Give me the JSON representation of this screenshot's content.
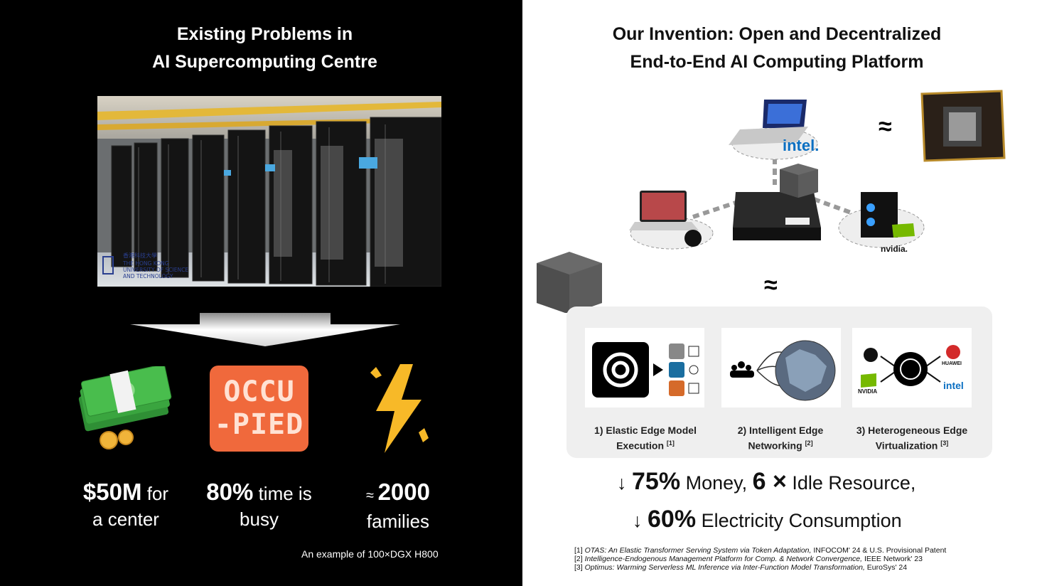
{
  "left": {
    "title_line1": "Existing Problems in",
    "title_line2": "AI Supercomputing Centre",
    "photo_logo": {
      "cjk": "香港科技大學",
      "line1": "THE HONG KONG",
      "line2": "UNIVERSITY OF SCIENCE",
      "line3": "AND TECHNOLOGY"
    },
    "occupied_line1": "OCCU",
    "occupied_line2": "-PIED",
    "stats": [
      {
        "value": "$50M",
        "text1": " for",
        "text2": "a center"
      },
      {
        "value": "80%",
        "text1": " time is",
        "text2": "busy"
      },
      {
        "prefix": "≈ ",
        "value": "2000",
        "text2": "families"
      }
    ],
    "footnote": "An example of 100×DGX H800"
  },
  "right": {
    "title_line1": "Our Invention: Open and Decentralized",
    "title_line2": "End-to-End AI Computing Platform",
    "approx_symbol": "≈",
    "brands": {
      "intel": "intel.",
      "nvidia": "nvidia.",
      "huawei": "HUAWEI",
      "intel_small": "intel",
      "nvidia_small": "NVIDIA"
    },
    "features": [
      {
        "label_line1": "1) Elastic Edge Model",
        "label_line2": "Execution",
        "ref": "[1]"
      },
      {
        "label_line1": "2) Intelligent Edge",
        "label_line2": "Networking",
        "ref": "[2]"
      },
      {
        "label_line1": "3) Heterogeneous Edge",
        "label_line2": "Virtualization",
        "ref": "[3]"
      }
    ],
    "result_line1": {
      "arrow": "↓",
      "v1": "75%",
      "t1": " Money, ",
      "v2": "6 ×",
      "t2": " Idle Resource,"
    },
    "result_line2": {
      "arrow": "↓",
      "v1": "60%",
      "t1": " Electricity Consumption"
    },
    "references": [
      {
        "num": "[1] ",
        "title": "OTAS: An Elastic Transformer Serving System via Token Adaptation,",
        "venue": " INFOCOM' 24 & U.S. Provisional Patent"
      },
      {
        "num": "[2] ",
        "title": "Intelligence-Endogenous Management Platform for Comp. & Network Convergence,",
        "venue": " IEEE Network' 23"
      },
      {
        "num": "[3] ",
        "title": "Optimus: Warming Serverless ML Inference via Inter-Function Model Transformation,",
        "venue": " EuroSys' 24"
      }
    ]
  },
  "colors": {
    "occupied_bg": "#f0693c",
    "bolt": "#f7b928",
    "money": "#3aa53f",
    "panel_bg": "#efefef",
    "cube": "#5a5a5a"
  }
}
